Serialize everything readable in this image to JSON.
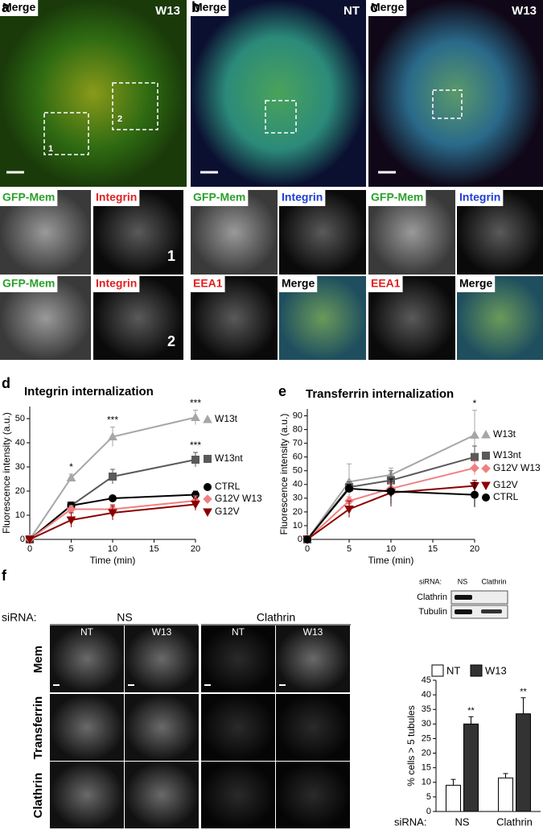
{
  "panel_letters": [
    "a",
    "b",
    "c",
    "d",
    "e",
    "f"
  ],
  "images": [
    {
      "label": "Merge",
      "label_color": "#000000",
      "corner": "W13",
      "notes": [
        "1",
        "2"
      ]
    },
    {
      "label": "GFP-Mem",
      "label_color": "#2ca02c"
    },
    {
      "label": "Integrin",
      "label_color": "#e02020",
      "number": "1"
    },
    {
      "label": "GFP-Mem",
      "label_color": "#2ca02c"
    },
    {
      "label": "Integrin",
      "label_color": "#e02020",
      "number": "2"
    },
    {
      "label": "Merge",
      "label_color": "#000000",
      "corner": "NT"
    },
    {
      "label": "GFP-Mem",
      "label_color": "#2ca02c"
    },
    {
      "label": "Integrin",
      "label_color": "#1f3fd0"
    },
    {
      "label": "EEA1",
      "label_color": "#e02020"
    },
    {
      "label": "Merge",
      "label_color": "#000000"
    },
    {
      "label": "Merge",
      "label_color": "#000000",
      "corner": "W13"
    },
    {
      "label": "GFP-Mem",
      "label_color": "#2ca02c"
    },
    {
      "label": "Integrin",
      "label_color": "#1f3fd0"
    },
    {
      "label": "EEA1",
      "label_color": "#e02020"
    },
    {
      "label": "Merge",
      "label_color": "#000000"
    }
  ],
  "panel_f": {
    "siRNA_label": "siRNA:",
    "groups": [
      "NS",
      "Clathrin"
    ],
    "columns": [
      "NT",
      "W13",
      "NT",
      "W13"
    ],
    "rows": [
      "Mem",
      "Transferrin",
      "Clathrin"
    ],
    "blot": {
      "header": [
        "siRNA:",
        "NS",
        "Clathrin"
      ],
      "rows": [
        "Clathrin",
        "Tubulin"
      ]
    }
  },
  "chart_data": [
    {
      "type": "line",
      "title": "Integrin internalization",
      "x_label": "Time (min)",
      "y_label": "Fluorescence intensity (a.u.)",
      "x": [
        0,
        5,
        10,
        20
      ],
      "xlim": [
        0,
        20
      ],
      "xticks": [
        0,
        5,
        10,
        15,
        20
      ],
      "ylim": [
        0,
        55
      ],
      "yticks": [
        0,
        10,
        20,
        30,
        40,
        50
      ],
      "series": [
        {
          "name": "W13t",
          "color": "#a6a6a6",
          "marker": "triangle",
          "values": [
            0,
            25.5,
            42.5,
            50.5
          ],
          "errors": [
            0,
            1.5,
            4,
            3
          ],
          "annotations": [
            null,
            "*",
            "***",
            "***"
          ]
        },
        {
          "name": "W13nt",
          "color": "#5a5a5a",
          "marker": "square",
          "values": [
            0,
            14,
            26,
            33
          ],
          "errors": [
            0,
            1.5,
            3,
            3
          ],
          "annotations": [
            null,
            null,
            null,
            "***"
          ]
        },
        {
          "name": "CTRL",
          "color": "#000000",
          "marker": "circle",
          "values": [
            0,
            14,
            17,
            18.5
          ],
          "errors": [
            0,
            1.5,
            1,
            1.5
          ]
        },
        {
          "name": "G12V W13",
          "color": "#f08080",
          "marker": "diamond",
          "values": [
            0,
            12.5,
            12.5,
            16
          ],
          "errors": [
            0,
            1.5,
            2,
            2
          ]
        },
        {
          "name": "G12V",
          "color": "#8b0000",
          "marker": "triangle-down",
          "values": [
            0,
            8,
            11,
            14.5
          ],
          "errors": [
            0,
            3,
            3,
            2.5
          ]
        }
      ]
    },
    {
      "type": "line",
      "title": "Transferrin internalization",
      "x_label": "Time (min)",
      "y_label": "Fluorescence intensity (a.u.)",
      "x": [
        0,
        5,
        10,
        20
      ],
      "xlim": [
        0,
        20
      ],
      "xticks": [
        0,
        5,
        10,
        15,
        20
      ],
      "ylim": [
        0,
        95
      ],
      "yticks": [
        0,
        10,
        20,
        30,
        40,
        50,
        60,
        70,
        80,
        90
      ],
      "series": [
        {
          "name": "W13t",
          "color": "#a6a6a6",
          "marker": "triangle",
          "values": [
            0,
            42,
            47,
            76
          ],
          "errors": [
            0,
            13,
            5,
            18
          ],
          "annotations": [
            null,
            null,
            null,
            "*"
          ]
        },
        {
          "name": "W13nt",
          "color": "#5a5a5a",
          "marker": "square",
          "values": [
            0,
            38,
            43,
            60
          ],
          "errors": [
            0,
            4,
            7,
            8
          ]
        },
        {
          "name": "G12V W13",
          "color": "#f08080",
          "marker": "diamond",
          "values": [
            0,
            28,
            37,
            52
          ],
          "errors": [
            0,
            3,
            4,
            5
          ]
        },
        {
          "name": "G12V",
          "color": "#8b0000",
          "marker": "triangle-down",
          "values": [
            0,
            22,
            34,
            39
          ],
          "errors": [
            0,
            6,
            10,
            4
          ]
        },
        {
          "name": "CTRL",
          "color": "#000000",
          "marker": "circle",
          "values": [
            0,
            37,
            35,
            32.5
          ],
          "errors": [
            0,
            3,
            9,
            9
          ]
        }
      ]
    },
    {
      "type": "bar",
      "y_label": "% cells > 5 tubules",
      "x_label": "siRNA:",
      "categories": [
        "NS",
        "Clathrin"
      ],
      "ylim": [
        0,
        45
      ],
      "yticks": [
        0,
        5,
        10,
        15,
        20,
        25,
        30,
        35,
        40,
        45
      ],
      "series": [
        {
          "name": "NT",
          "color": "#ffffff",
          "values": [
            9,
            11.5
          ],
          "errors": [
            2,
            1.5
          ]
        },
        {
          "name": "W13",
          "color": "#333333",
          "values": [
            30,
            33.5
          ],
          "errors": [
            2.5,
            5.5
          ],
          "annotations": [
            "**",
            "**"
          ]
        }
      ]
    }
  ]
}
